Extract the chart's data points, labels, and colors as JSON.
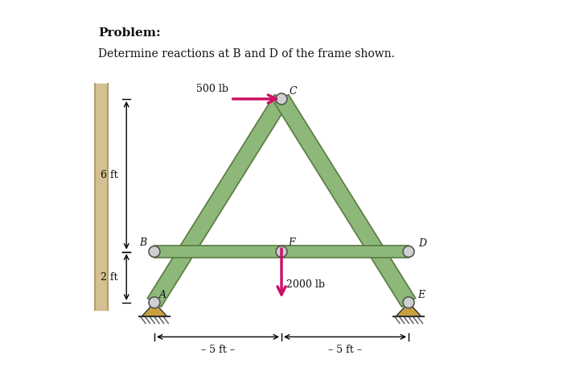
{
  "title_bold": "Problem:",
  "title_normal": "Determine reactions at B and D of the frame shown.",
  "bg_color": "#ffffff",
  "frame_color": "#8db87a",
  "frame_edge_color": "#5a7a40",
  "pin_color": "#d0d0d0",
  "pin_edge_color": "#555555",
  "load_color": "#cc1166",
  "support_color": "#c8a040",
  "wall_color": "#d4c090",
  "A": [
    0,
    0
  ],
  "B": [
    0,
    2
  ],
  "C": [
    5,
    8
  ],
  "D": [
    10,
    2
  ],
  "E": [
    10,
    0
  ],
  "F": [
    5,
    2
  ],
  "label_6ft": "6 ft",
  "label_2ft": "2 ft",
  "label_500lb": "500 lb",
  "label_2000lb": "2000 lb",
  "label_5ft_left": "5 ft",
  "label_5ft_right": "5 ft"
}
